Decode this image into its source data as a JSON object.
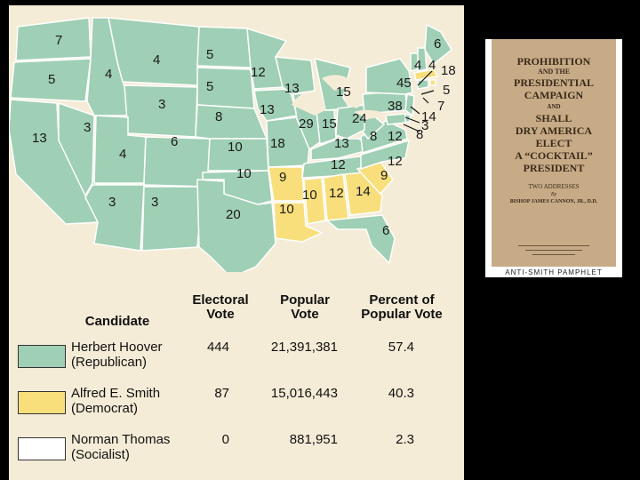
{
  "map": {
    "colors": {
      "republican": "#9fcfb4",
      "democrat": "#f8df7c",
      "ocean": "#f5ecd7",
      "border": "#ffffff"
    },
    "states": [
      {
        "abbr": "WA",
        "votes": "7",
        "party": "republican"
      },
      {
        "abbr": "OR",
        "votes": "5",
        "party": "republican"
      },
      {
        "abbr": "CA",
        "votes": "13",
        "party": "republican"
      },
      {
        "abbr": "ID",
        "votes": "4",
        "party": "republican"
      },
      {
        "abbr": "NV",
        "votes": "3",
        "party": "republican"
      },
      {
        "abbr": "MT",
        "votes": "4",
        "party": "republican"
      },
      {
        "abbr": "WY",
        "votes": "3",
        "party": "republican"
      },
      {
        "abbr": "UT",
        "votes": "4",
        "party": "republican"
      },
      {
        "abbr": "AZ",
        "votes": "3",
        "party": "republican"
      },
      {
        "abbr": "CO",
        "votes": "6",
        "party": "republican"
      },
      {
        "abbr": "NM",
        "votes": "3",
        "party": "republican"
      },
      {
        "abbr": "ND",
        "votes": "5",
        "party": "republican"
      },
      {
        "abbr": "SD",
        "votes": "5",
        "party": "republican"
      },
      {
        "abbr": "NE",
        "votes": "8",
        "party": "republican"
      },
      {
        "abbr": "KS",
        "votes": "10",
        "party": "republican"
      },
      {
        "abbr": "OK",
        "votes": "10",
        "party": "republican"
      },
      {
        "abbr": "TX",
        "votes": "20",
        "party": "republican"
      },
      {
        "abbr": "MN",
        "votes": "12",
        "party": "republican"
      },
      {
        "abbr": "IA",
        "votes": "13",
        "party": "republican"
      },
      {
        "abbr": "MO",
        "votes": "18",
        "party": "republican"
      },
      {
        "abbr": "AR",
        "votes": "9",
        "party": "democrat"
      },
      {
        "abbr": "LA",
        "votes": "10",
        "party": "democrat"
      },
      {
        "abbr": "WI",
        "votes": "13",
        "party": "republican"
      },
      {
        "abbr": "IL",
        "votes": "29",
        "party": "republican"
      },
      {
        "abbr": "MI",
        "votes": "15",
        "party": "republican"
      },
      {
        "abbr": "IN",
        "votes": "15",
        "party": "republican"
      },
      {
        "abbr": "KY",
        "votes": "13",
        "party": "republican"
      },
      {
        "abbr": "TN",
        "votes": "12",
        "party": "republican"
      },
      {
        "abbr": "MS",
        "votes": "10",
        "party": "democrat"
      },
      {
        "abbr": "AL",
        "votes": "12",
        "party": "democrat"
      },
      {
        "abbr": "GA",
        "votes": "14",
        "party": "democrat"
      },
      {
        "abbr": "FL",
        "votes": "6",
        "party": "republican"
      },
      {
        "abbr": "SC",
        "votes": "9",
        "party": "democrat"
      },
      {
        "abbr": "NC",
        "votes": "12",
        "party": "republican"
      },
      {
        "abbr": "VA",
        "votes": "12",
        "party": "republican"
      },
      {
        "abbr": "WV",
        "votes": "8",
        "party": "republican"
      },
      {
        "abbr": "OH",
        "votes": "24",
        "party": "republican"
      },
      {
        "abbr": "PA",
        "votes": "38",
        "party": "republican"
      },
      {
        "abbr": "NY",
        "votes": "45",
        "party": "republican"
      },
      {
        "abbr": "ME",
        "votes": "6",
        "party": "republican"
      },
      {
        "abbr": "VT",
        "votes": "4",
        "party": "republican"
      },
      {
        "abbr": "NH",
        "votes": "4",
        "party": "republican"
      },
      {
        "abbr": "MA",
        "votes": "18",
        "party": "democrat"
      },
      {
        "abbr": "RI",
        "votes": "5",
        "party": "democrat"
      },
      {
        "abbr": "CT",
        "votes": "7",
        "party": "republican"
      },
      {
        "abbr": "NJ",
        "votes": "14",
        "party": "republican"
      },
      {
        "abbr": "DE",
        "votes": "3",
        "party": "republican"
      },
      {
        "abbr": "MD",
        "votes": "8",
        "party": "republican"
      }
    ]
  },
  "table": {
    "headers": {
      "candidate": "Candidate",
      "electoral": "Electoral Vote",
      "popular": "Popular Vote",
      "percent": "Percent of Popular Vote"
    },
    "rows": [
      {
        "name": "Herbert Hoover",
        "party": "(Republican)",
        "electoral": "444",
        "popular": "21,391,381",
        "percent": "57.4",
        "color": "#9fcfb4"
      },
      {
        "name": "Alfred E. Smith",
        "party": "(Democrat)",
        "electoral": "87",
        "popular": "15,016,443",
        "percent": "40.3",
        "color": "#f8df7c"
      },
      {
        "name": "Norman Thomas",
        "party": "(Socialist)",
        "electoral": "0",
        "popular": "881,951",
        "percent": "2.3",
        "color": "#ffffff"
      }
    ]
  },
  "pamphlet": {
    "title1": "PROHIBITION",
    "title2": "AND THE",
    "title3": "PRESIDENTIAL",
    "title4": "CAMPAIGN",
    "and": "AND",
    "question1": "SHALL",
    "question2": "DRY AMERICA",
    "question3": "ELECT",
    "question4": "A “COCKTAIL”",
    "question5": "PRESIDENT",
    "subtitle": "TWO ADDRESSES",
    "by": "By",
    "author": "BISHOP JAMES CANNON, JR., D.D.",
    "caption": "ANTI-SMITH PAMPHLET"
  }
}
